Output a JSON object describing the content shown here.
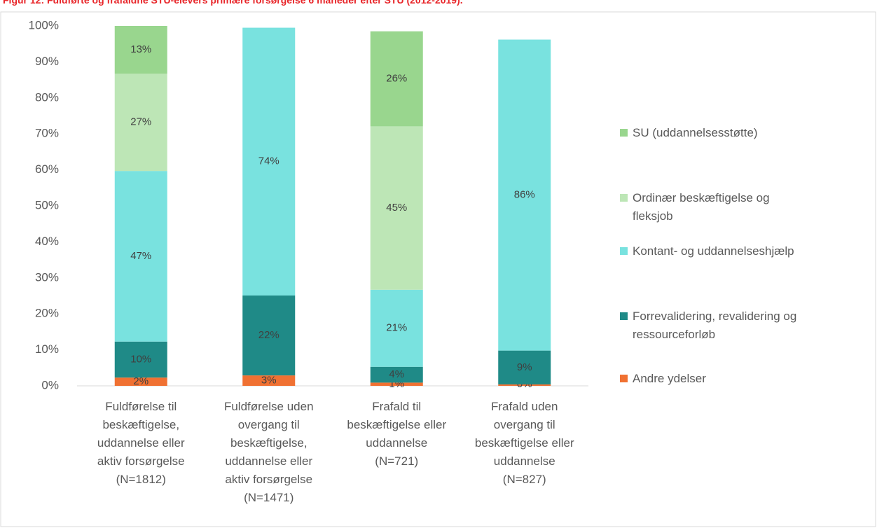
{
  "chart_data": {
    "type": "stacked_bar",
    "title": "Figur 12: Fuldførte og frafaldne STU-elevers primære forsørgelse 6 måneder efter STU (2012-2019).",
    "categories": [
      "Fuldførelse til\nbeskæftigelse,\nuddannelse eller\naktiv forsørgelse\n(N=1812)",
      "Fuldførelse uden\novergang til\nbeskæftigelse,\nuddannelse eller\naktiv forsørgelse\n(N=1471)",
      "Frafald til\nbeskæftigelse eller\nuddannelse\n(N=721)",
      "Frafald uden\novergang til\nbeskæftigelse eller\nuddannelse\n(N=827)"
    ],
    "series": [
      {
        "name": "Andre ydelser",
        "color": "#f07132",
        "values": [
          2.3,
          2.9,
          0.9,
          0.4
        ],
        "value_labels": [
          "2%",
          "3%",
          "1%",
          "0%"
        ]
      },
      {
        "name": "Forrevalidering, revalidering og\nressourceforløb",
        "color": "#1f8a87",
        "values": [
          10.0,
          22.2,
          4.4,
          9.4
        ],
        "value_labels": [
          "10%",
          "22%",
          "4%",
          "9%"
        ]
      },
      {
        "name": "Kontant- og uddannelseshjælp",
        "color": "#79e2df",
        "values": [
          47.4,
          74.4,
          21.4,
          86.4
        ],
        "value_labels": [
          "47%",
          "74%",
          "21%",
          "86%"
        ]
      },
      {
        "name": "Ordinær beskæftigelse og\nfleksjob",
        "color": "#bde6b6",
        "values": [
          27.0,
          null,
          45.4,
          null
        ],
        "value_labels": [
          "27%",
          null,
          "45%",
          null
        ]
      },
      {
        "name": "SU (uddannelsesstøtte)",
        "color": "#99d68e",
        "values": [
          13.3,
          null,
          26.4,
          null
        ],
        "value_labels": [
          "13%",
          null,
          "26%",
          null
        ]
      }
    ],
    "ylim": [
      0,
      100
    ],
    "yticks": [
      {
        "value": 0,
        "label": "0%"
      },
      {
        "value": 10,
        "label": "10%"
      },
      {
        "value": 20,
        "label": "20%"
      },
      {
        "value": 30,
        "label": "30%"
      },
      {
        "value": 40,
        "label": "40%"
      },
      {
        "value": 50,
        "label": "50%"
      },
      {
        "value": 60,
        "label": "60%"
      },
      {
        "value": 70,
        "label": "70%"
      },
      {
        "value": 80,
        "label": "80%"
      },
      {
        "value": 90,
        "label": "90%"
      },
      {
        "value": 100,
        "label": "100%"
      }
    ],
    "legend": "right"
  }
}
